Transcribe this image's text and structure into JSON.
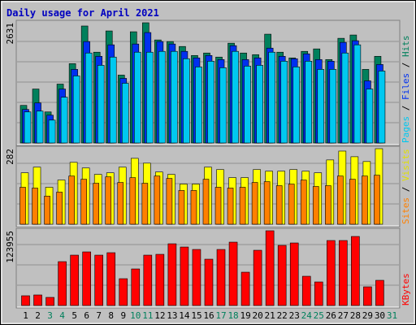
{
  "chart_data": {
    "type": "multi-panel-bar",
    "title": "Daily usage for April 2021",
    "categories": [
      "1",
      "2",
      "3",
      "4",
      "5",
      "6",
      "7",
      "8",
      "9",
      "10",
      "11",
      "12",
      "13",
      "14",
      "15",
      "16",
      "17",
      "18",
      "19",
      "20",
      "21",
      "22",
      "23",
      "24",
      "25",
      "26",
      "27",
      "28",
      "29",
      "30",
      "31"
    ],
    "category_colors": [
      "#000",
      "#000",
      "#00805c",
      "#00805c",
      "#000",
      "#000",
      "#000",
      "#000",
      "#000",
      "#00805c",
      "#00805c",
      "#000",
      "#000",
      "#000",
      "#000",
      "#000",
      "#00805c",
      "#00805c",
      "#000",
      "#000",
      "#000",
      "#000",
      "#000",
      "#00805c",
      "#00805c",
      "#000",
      "#000",
      "#000",
      "#000",
      "#000",
      "#00805c"
    ],
    "legend_separator": " / ",
    "panels": [
      {
        "ylim": [
          0,
          2631
        ],
        "yticks": [
          2631
        ],
        "series": [
          {
            "name": "Hits",
            "color": "#00805c",
            "values": [
              823,
              1181,
              680,
              1289,
              1736,
              2560,
              1987,
              2452,
              1486,
              2434,
              2631,
              2255,
              2220,
              2112,
              1915,
              1969,
              1880,
              2184,
              1969,
              1933,
              2381,
              1987,
              1862,
              2005,
              2059,
              1826,
              2291,
              2363,
              1611,
              1897,
              null
            ]
          },
          {
            "name": "Files",
            "color": "#0030f0",
            "values": [
              734,
              877,
              609,
              1181,
              1611,
              2220,
              1897,
              2148,
              1414,
              2166,
              2417,
              2220,
              2166,
              2005,
              1862,
              1915,
              1826,
              2130,
              1826,
              1862,
              2076,
              1897,
              1844,
              1951,
              1826,
              1790,
              2202,
              2238,
              1360,
              1718,
              null
            ]
          },
          {
            "name": "Pages",
            "color": "#00c8f0",
            "values": [
              680,
              698,
              501,
              1002,
              1468,
              1969,
              1700,
              1880,
              1307,
              1987,
              1987,
              2005,
              2005,
              1844,
              1665,
              1790,
              1647,
              2005,
              1683,
              1700,
              1987,
              1790,
              1665,
              1790,
              1611,
              1611,
              1969,
              2148,
              1181,
              1575,
              null
            ]
          }
        ]
      },
      {
        "ylim": [
          0,
          282
        ],
        "yticks": [
          282
        ],
        "series": [
          {
            "name": "Visits",
            "color": "#ffff00",
            "values": [
              192,
              213,
              138,
              165,
              231,
              210,
              186,
              192,
              213,
              246,
              228,
              195,
              186,
              150,
              150,
              213,
              204,
              174,
              174,
              204,
              198,
              198,
              204,
              198,
              192,
              240,
              273,
              252,
              234,
              282,
              null
            ]
          },
          {
            "name": "Sites",
            "color": "#ff8000",
            "values": [
              138,
              135,
              105,
              120,
              180,
              168,
              153,
              177,
              156,
              174,
              153,
              180,
              171,
              126,
              126,
              168,
              138,
              135,
              138,
              156,
              159,
              144,
              150,
              165,
              141,
              144,
              180,
              168,
              180,
              183,
              null
            ]
          }
        ]
      },
      {
        "ylim": [
          0,
          123955
        ],
        "yticks": [
          123955
        ],
        "series": [
          {
            "name": "KBytes",
            "color": "#ff0000",
            "values": [
              16164,
              17511,
              13470,
              72738,
              83514,
              88902,
              83514,
              87555,
              44451,
              60615,
              83514,
              84861,
              102372,
              96984,
              92943,
              76779,
              92943,
              105066,
              55227,
              91596,
              123955,
              99678,
              103719,
              48492,
              39063,
              107760,
              107760,
              114495,
              30981,
              41757,
              null
            ]
          }
        ]
      }
    ]
  }
}
